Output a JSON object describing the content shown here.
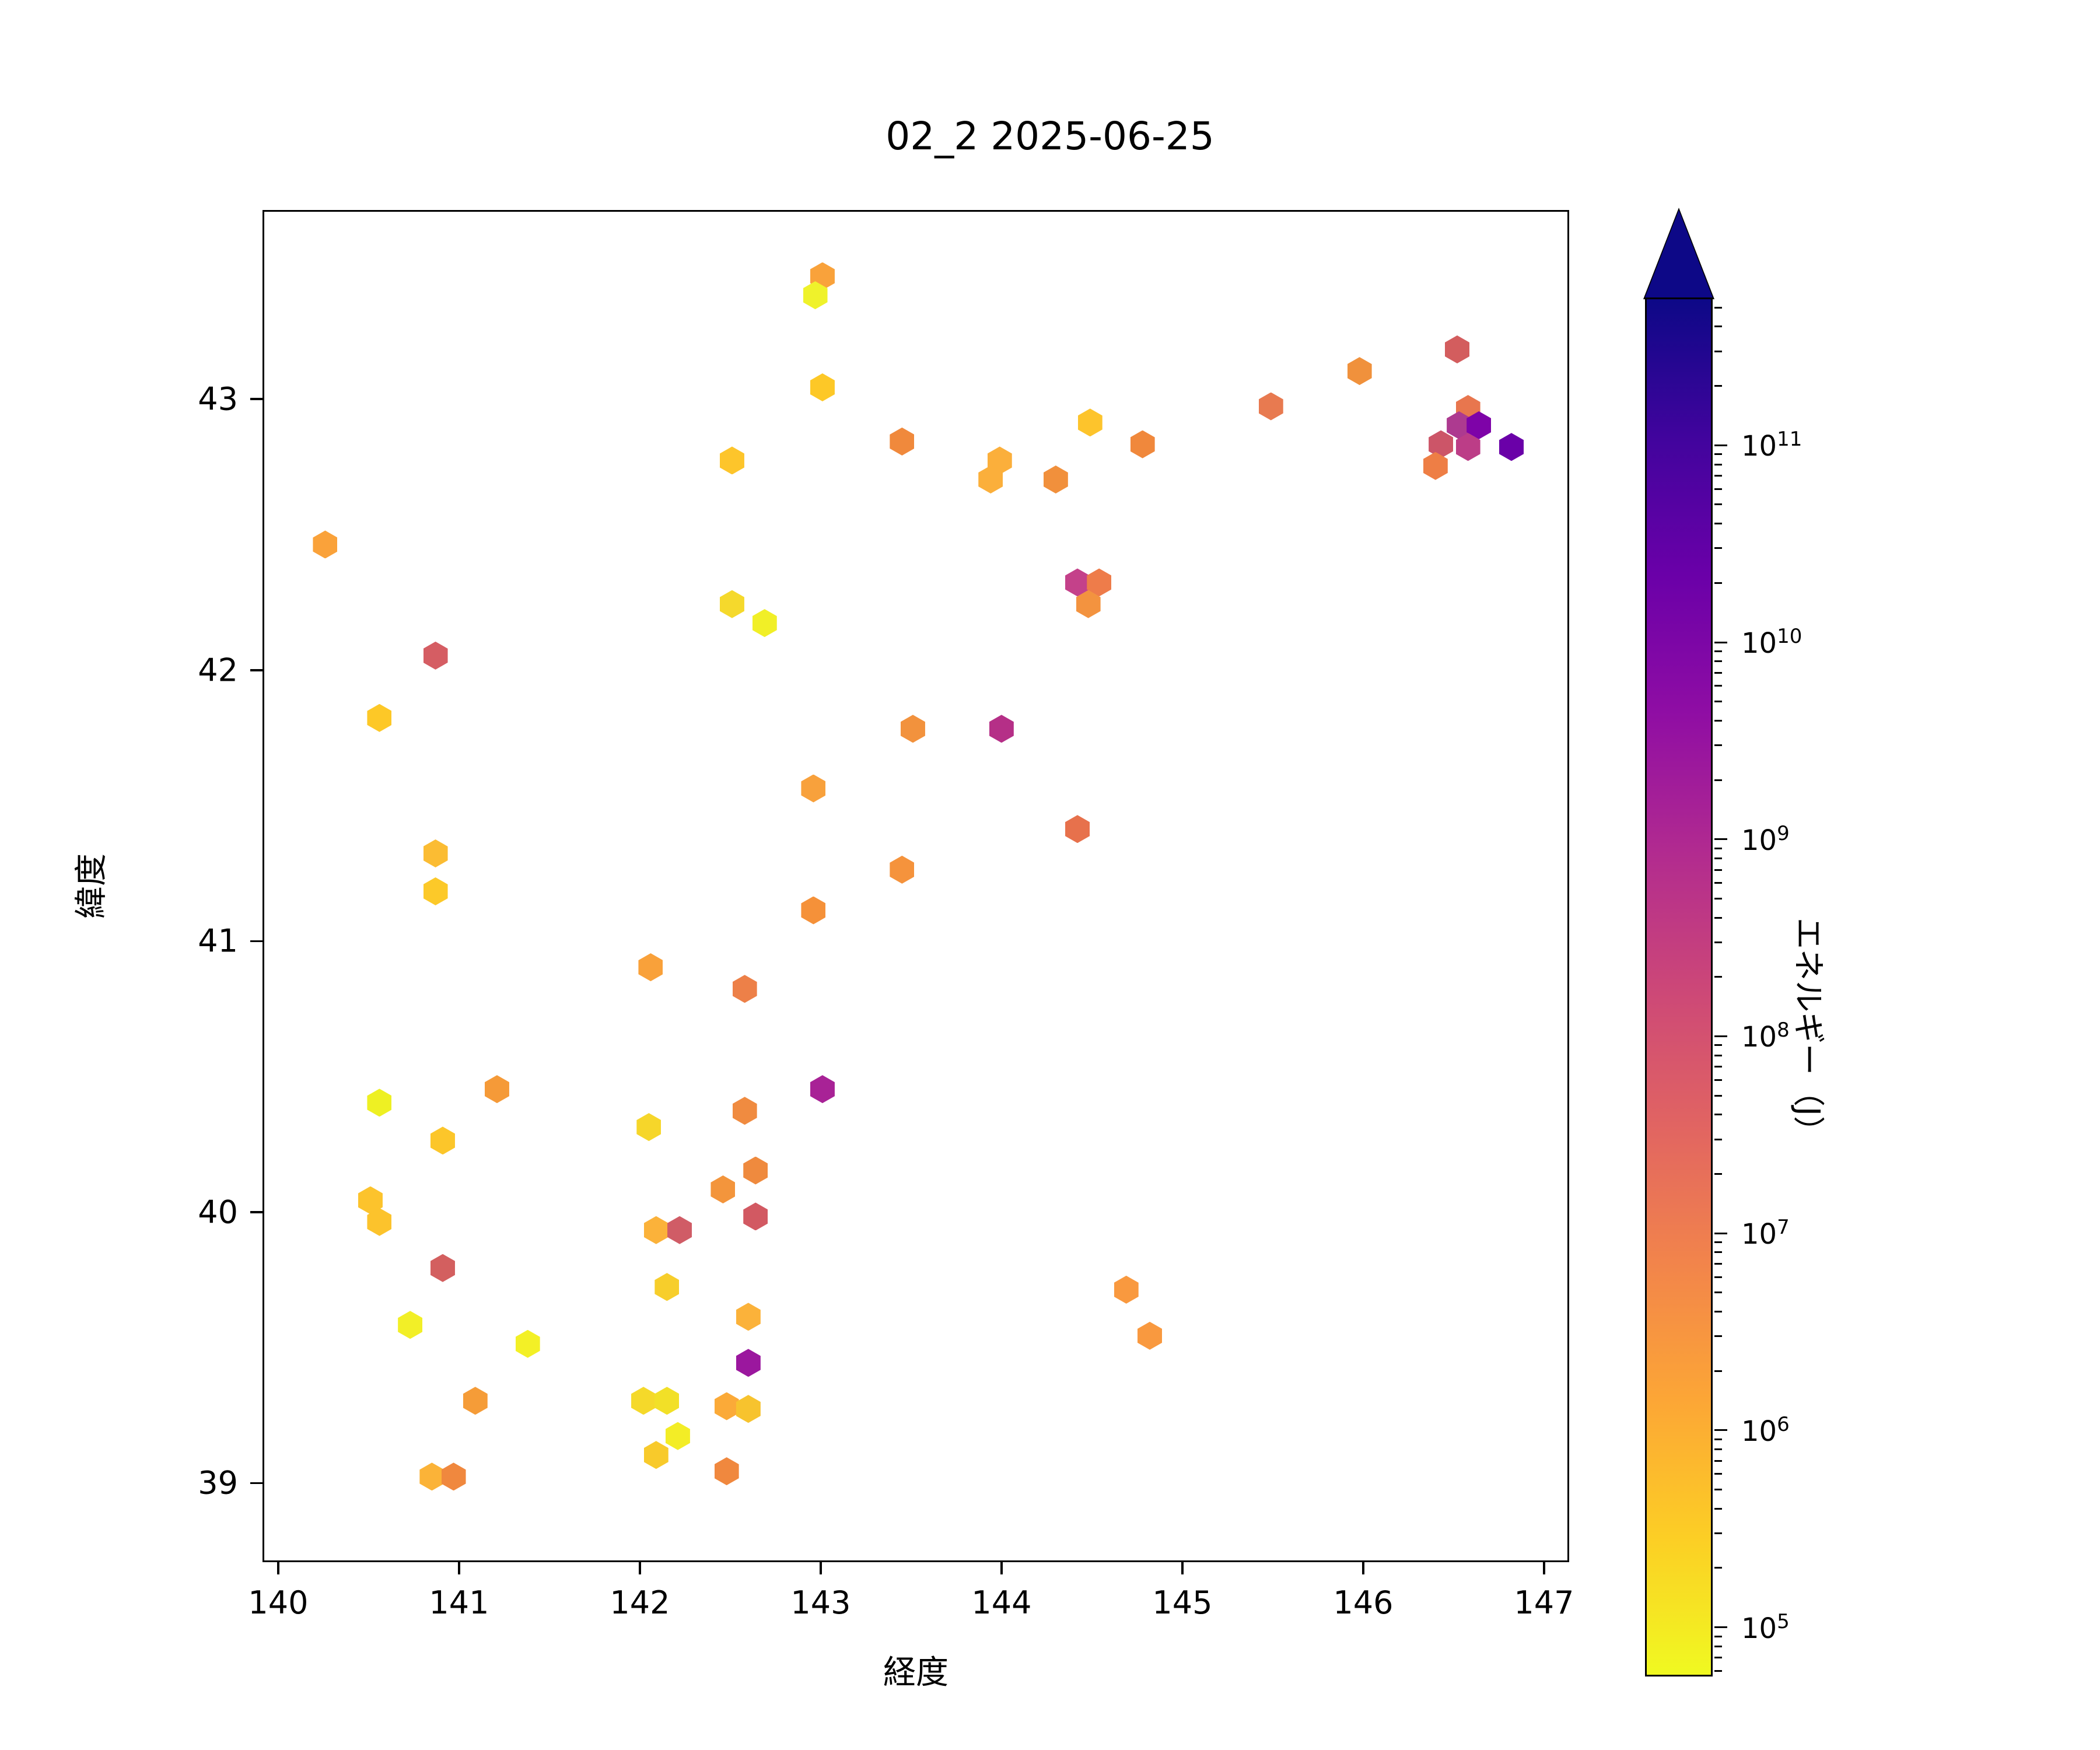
{
  "title": "02_2 2025-06-25",
  "axes": {
    "xlabel": "経度",
    "ylabel": "緯度",
    "xlim": [
      139.913,
      147.139
    ],
    "ylim": [
      38.708,
      43.698
    ],
    "xticks": [
      140,
      141,
      142,
      143,
      144,
      145,
      146,
      147
    ],
    "yticks": [
      39,
      40,
      41,
      42,
      43
    ]
  },
  "colorbar": {
    "label": "エネルギー（J）",
    "scale": "log",
    "tick_exponents": [
      5,
      6,
      7,
      8,
      9,
      10,
      11
    ],
    "bar_range_exponents": [
      4.75,
      11.75
    ],
    "extend": "max",
    "colormap": "plasma_r",
    "gradient_top_to_bottom": [
      "#0d0887",
      "#41049d",
      "#6a00a8",
      "#8f0da4",
      "#b12a90",
      "#cc4778",
      "#e16462",
      "#f2844b",
      "#fca636",
      "#fcce25",
      "#f0f921"
    ],
    "over_color": "#0d0887"
  },
  "chart_data": {
    "type": "scatter",
    "marker": "hexagon",
    "title": "02_2 2025-06-25",
    "xlabel": "経度",
    "ylabel": "緯度",
    "color_label": "エネルギー（J）",
    "xlim": [
      139.913,
      147.139
    ],
    "ylim": [
      38.708,
      43.698
    ],
    "grid": false,
    "points": [
      {
        "lon": 143.0,
        "lat": 43.46,
        "energy_j": 3000000.0,
        "color": "#f9a23b"
      },
      {
        "lon": 142.96,
        "lat": 43.39,
        "energy_j": 150000.0,
        "color": "#eff22b"
      },
      {
        "lon": 143.0,
        "lat": 43.05,
        "energy_j": 1000000.0,
        "color": "#fdc827"
      },
      {
        "lon": 146.51,
        "lat": 43.19,
        "energy_j": 200000000.0,
        "color": "#d35d5e"
      },
      {
        "lon": 145.97,
        "lat": 43.11,
        "energy_j": 15000000.0,
        "color": "#f0913c"
      },
      {
        "lon": 145.48,
        "lat": 42.98,
        "energy_j": 50000000.0,
        "color": "#e87a50"
      },
      {
        "lon": 144.48,
        "lat": 42.92,
        "energy_j": 1000000.0,
        "color": "#fdc42c"
      },
      {
        "lon": 143.44,
        "lat": 42.85,
        "energy_j": 20000000.0,
        "color": "#f0893c"
      },
      {
        "lon": 142.5,
        "lat": 42.78,
        "energy_j": 1000000.0,
        "color": "#fdc52b"
      },
      {
        "lon": 143.98,
        "lat": 42.78,
        "energy_j": 3000000.0,
        "color": "#fbaf3b"
      },
      {
        "lon": 143.93,
        "lat": 42.71,
        "energy_j": 3000000.0,
        "color": "#fbaf3b"
      },
      {
        "lon": 144.29,
        "lat": 42.71,
        "energy_j": 15000000.0,
        "color": "#f1903c"
      },
      {
        "lon": 144.77,
        "lat": 42.84,
        "energy_j": 20000000.0,
        "color": "#f0883c"
      },
      {
        "lon": 146.57,
        "lat": 42.97,
        "energy_j": 60000000.0,
        "color": "#e8764e"
      },
      {
        "lon": 146.52,
        "lat": 42.91,
        "energy_j": 2500000000.0,
        "color": "#ad3a90"
      },
      {
        "lon": 146.63,
        "lat": 42.91,
        "energy_j": 50000000000.0,
        "color": "#7e03a8"
      },
      {
        "lon": 146.42,
        "lat": 42.84,
        "energy_j": 500000000.0,
        "color": "#cc5568"
      },
      {
        "lon": 146.57,
        "lat": 42.83,
        "energy_j": 1500000000.0,
        "color": "#bc3d87"
      },
      {
        "lon": 146.81,
        "lat": 42.83,
        "energy_j": 100000000000.0,
        "color": "#6a00a8"
      },
      {
        "lon": 146.39,
        "lat": 42.76,
        "energy_j": 25000000.0,
        "color": "#ee7e45"
      },
      {
        "lon": 140.25,
        "lat": 42.47,
        "energy_j": 3000000.0,
        "color": "#faa23a"
      },
      {
        "lon": 140.86,
        "lat": 42.06,
        "energy_j": 200000000.0,
        "color": "#d55d63"
      },
      {
        "lon": 144.41,
        "lat": 42.33,
        "energy_j": 1000000000.0,
        "color": "#c4418a"
      },
      {
        "lon": 144.53,
        "lat": 42.33,
        "energy_j": 30000000.0,
        "color": "#ee7c4a"
      },
      {
        "lon": 144.47,
        "lat": 42.25,
        "energy_j": 12000000.0,
        "color": "#f3933f"
      },
      {
        "lon": 142.5,
        "lat": 42.25,
        "energy_j": 500000.0,
        "color": "#f5d92c"
      },
      {
        "lon": 142.68,
        "lat": 42.18,
        "energy_j": 200000.0,
        "color": "#f1ef27"
      },
      {
        "lon": 140.55,
        "lat": 41.83,
        "energy_j": 1000000.0,
        "color": "#fdc827"
      },
      {
        "lon": 140.86,
        "lat": 41.33,
        "energy_j": 2000000.0,
        "color": "#fbbc33"
      },
      {
        "lon": 140.86,
        "lat": 41.19,
        "energy_j": 1000000.0,
        "color": "#fcc929"
      },
      {
        "lon": 143.5,
        "lat": 41.79,
        "energy_j": 12000000.0,
        "color": "#f2923d"
      },
      {
        "lon": 143.99,
        "lat": 41.79,
        "energy_j": 2500000000.0,
        "color": "#b52f87"
      },
      {
        "lon": 142.95,
        "lat": 41.57,
        "energy_j": 3500000.0,
        "color": "#f8a13c"
      },
      {
        "lon": 144.41,
        "lat": 41.42,
        "energy_j": 70000000.0,
        "color": "#e7714c"
      },
      {
        "lon": 143.44,
        "lat": 41.27,
        "energy_j": 10000000.0,
        "color": "#f5933c"
      },
      {
        "lon": 142.95,
        "lat": 41.12,
        "energy_j": 12000000.0,
        "color": "#f59139"
      },
      {
        "lon": 142.05,
        "lat": 40.91,
        "energy_j": 4000000.0,
        "color": "#f9a13a"
      },
      {
        "lon": 142.57,
        "lat": 40.83,
        "energy_j": 40000000.0,
        "color": "#ed8048"
      },
      {
        "lon": 141.2,
        "lat": 40.46,
        "energy_j": 8000000.0,
        "color": "#f59a38"
      },
      {
        "lon": 140.55,
        "lat": 40.41,
        "energy_j": 150000.0,
        "color": "#eef023"
      },
      {
        "lon": 143.0,
        "lat": 40.46,
        "energy_j": 8000000000.0,
        "color": "#a82296"
      },
      {
        "lon": 142.57,
        "lat": 40.38,
        "energy_j": 20000000.0,
        "color": "#f08b40"
      },
      {
        "lon": 142.04,
        "lat": 40.32,
        "energy_j": 600000.0,
        "color": "#f6d62a"
      },
      {
        "lon": 140.9,
        "lat": 40.27,
        "energy_j": 1000000.0,
        "color": "#fcc62a"
      },
      {
        "lon": 140.5,
        "lat": 40.05,
        "energy_j": 1200000.0,
        "color": "#fcc32c"
      },
      {
        "lon": 140.55,
        "lat": 39.97,
        "energy_j": 1200000.0,
        "color": "#fcc32c"
      },
      {
        "lon": 142.63,
        "lat": 40.16,
        "energy_j": 20000000.0,
        "color": "#ef8a3e"
      },
      {
        "lon": 142.45,
        "lat": 40.09,
        "energy_j": 10000000.0,
        "color": "#f3953c"
      },
      {
        "lon": 142.63,
        "lat": 39.99,
        "energy_j": 180000000.0,
        "color": "#d25962"
      },
      {
        "lon": 142.08,
        "lat": 39.94,
        "energy_j": 3000000.0,
        "color": "#fbb23a"
      },
      {
        "lon": 142.21,
        "lat": 39.94,
        "energy_j": 200000000.0,
        "color": "#d05c66"
      },
      {
        "lon": 140.9,
        "lat": 39.8,
        "energy_j": 180000000.0,
        "color": "#d35f5f"
      },
      {
        "lon": 142.14,
        "lat": 39.73,
        "energy_j": 900000.0,
        "color": "#f7ce2b"
      },
      {
        "lon": 142.59,
        "lat": 39.62,
        "energy_j": 3000000.0,
        "color": "#fbb23a"
      },
      {
        "lon": 140.72,
        "lat": 39.59,
        "energy_j": 180000.0,
        "color": "#f2ef27"
      },
      {
        "lon": 141.37,
        "lat": 39.52,
        "energy_j": 160000.0,
        "color": "#f3f026"
      },
      {
        "lon": 142.59,
        "lat": 39.45,
        "energy_j": 10000000000.0,
        "color": "#9b179e"
      },
      {
        "lon": 142.47,
        "lat": 39.29,
        "energy_j": 3500000.0,
        "color": "#fbaa38"
      },
      {
        "lon": 142.59,
        "lat": 39.28,
        "energy_j": 1300000.0,
        "color": "#f7c32e"
      },
      {
        "lon": 142.01,
        "lat": 39.31,
        "energy_j": 500000.0,
        "color": "#f5d92a"
      },
      {
        "lon": 142.14,
        "lat": 39.31,
        "energy_j": 400000.0,
        "color": "#f2e027"
      },
      {
        "lon": 142.2,
        "lat": 39.18,
        "energy_j": 200000.0,
        "color": "#f3ed26"
      },
      {
        "lon": 141.08,
        "lat": 39.31,
        "energy_j": 7000000.0,
        "color": "#f59c38"
      },
      {
        "lon": 142.08,
        "lat": 39.11,
        "energy_j": 1000000.0,
        "color": "#f8ca2b"
      },
      {
        "lon": 142.47,
        "lat": 39.05,
        "energy_j": 20000000.0,
        "color": "#f0883e"
      },
      {
        "lon": 140.84,
        "lat": 39.03,
        "energy_j": 3000000.0,
        "color": "#fbb338"
      },
      {
        "lon": 140.96,
        "lat": 39.03,
        "energy_j": 20000000.0,
        "color": "#f0883e"
      },
      {
        "lon": 144.68,
        "lat": 39.72,
        "energy_j": 8000000.0,
        "color": "#f9993f"
      },
      {
        "lon": 144.81,
        "lat": 39.55,
        "energy_j": 8000000.0,
        "color": "#f9993f"
      }
    ]
  }
}
